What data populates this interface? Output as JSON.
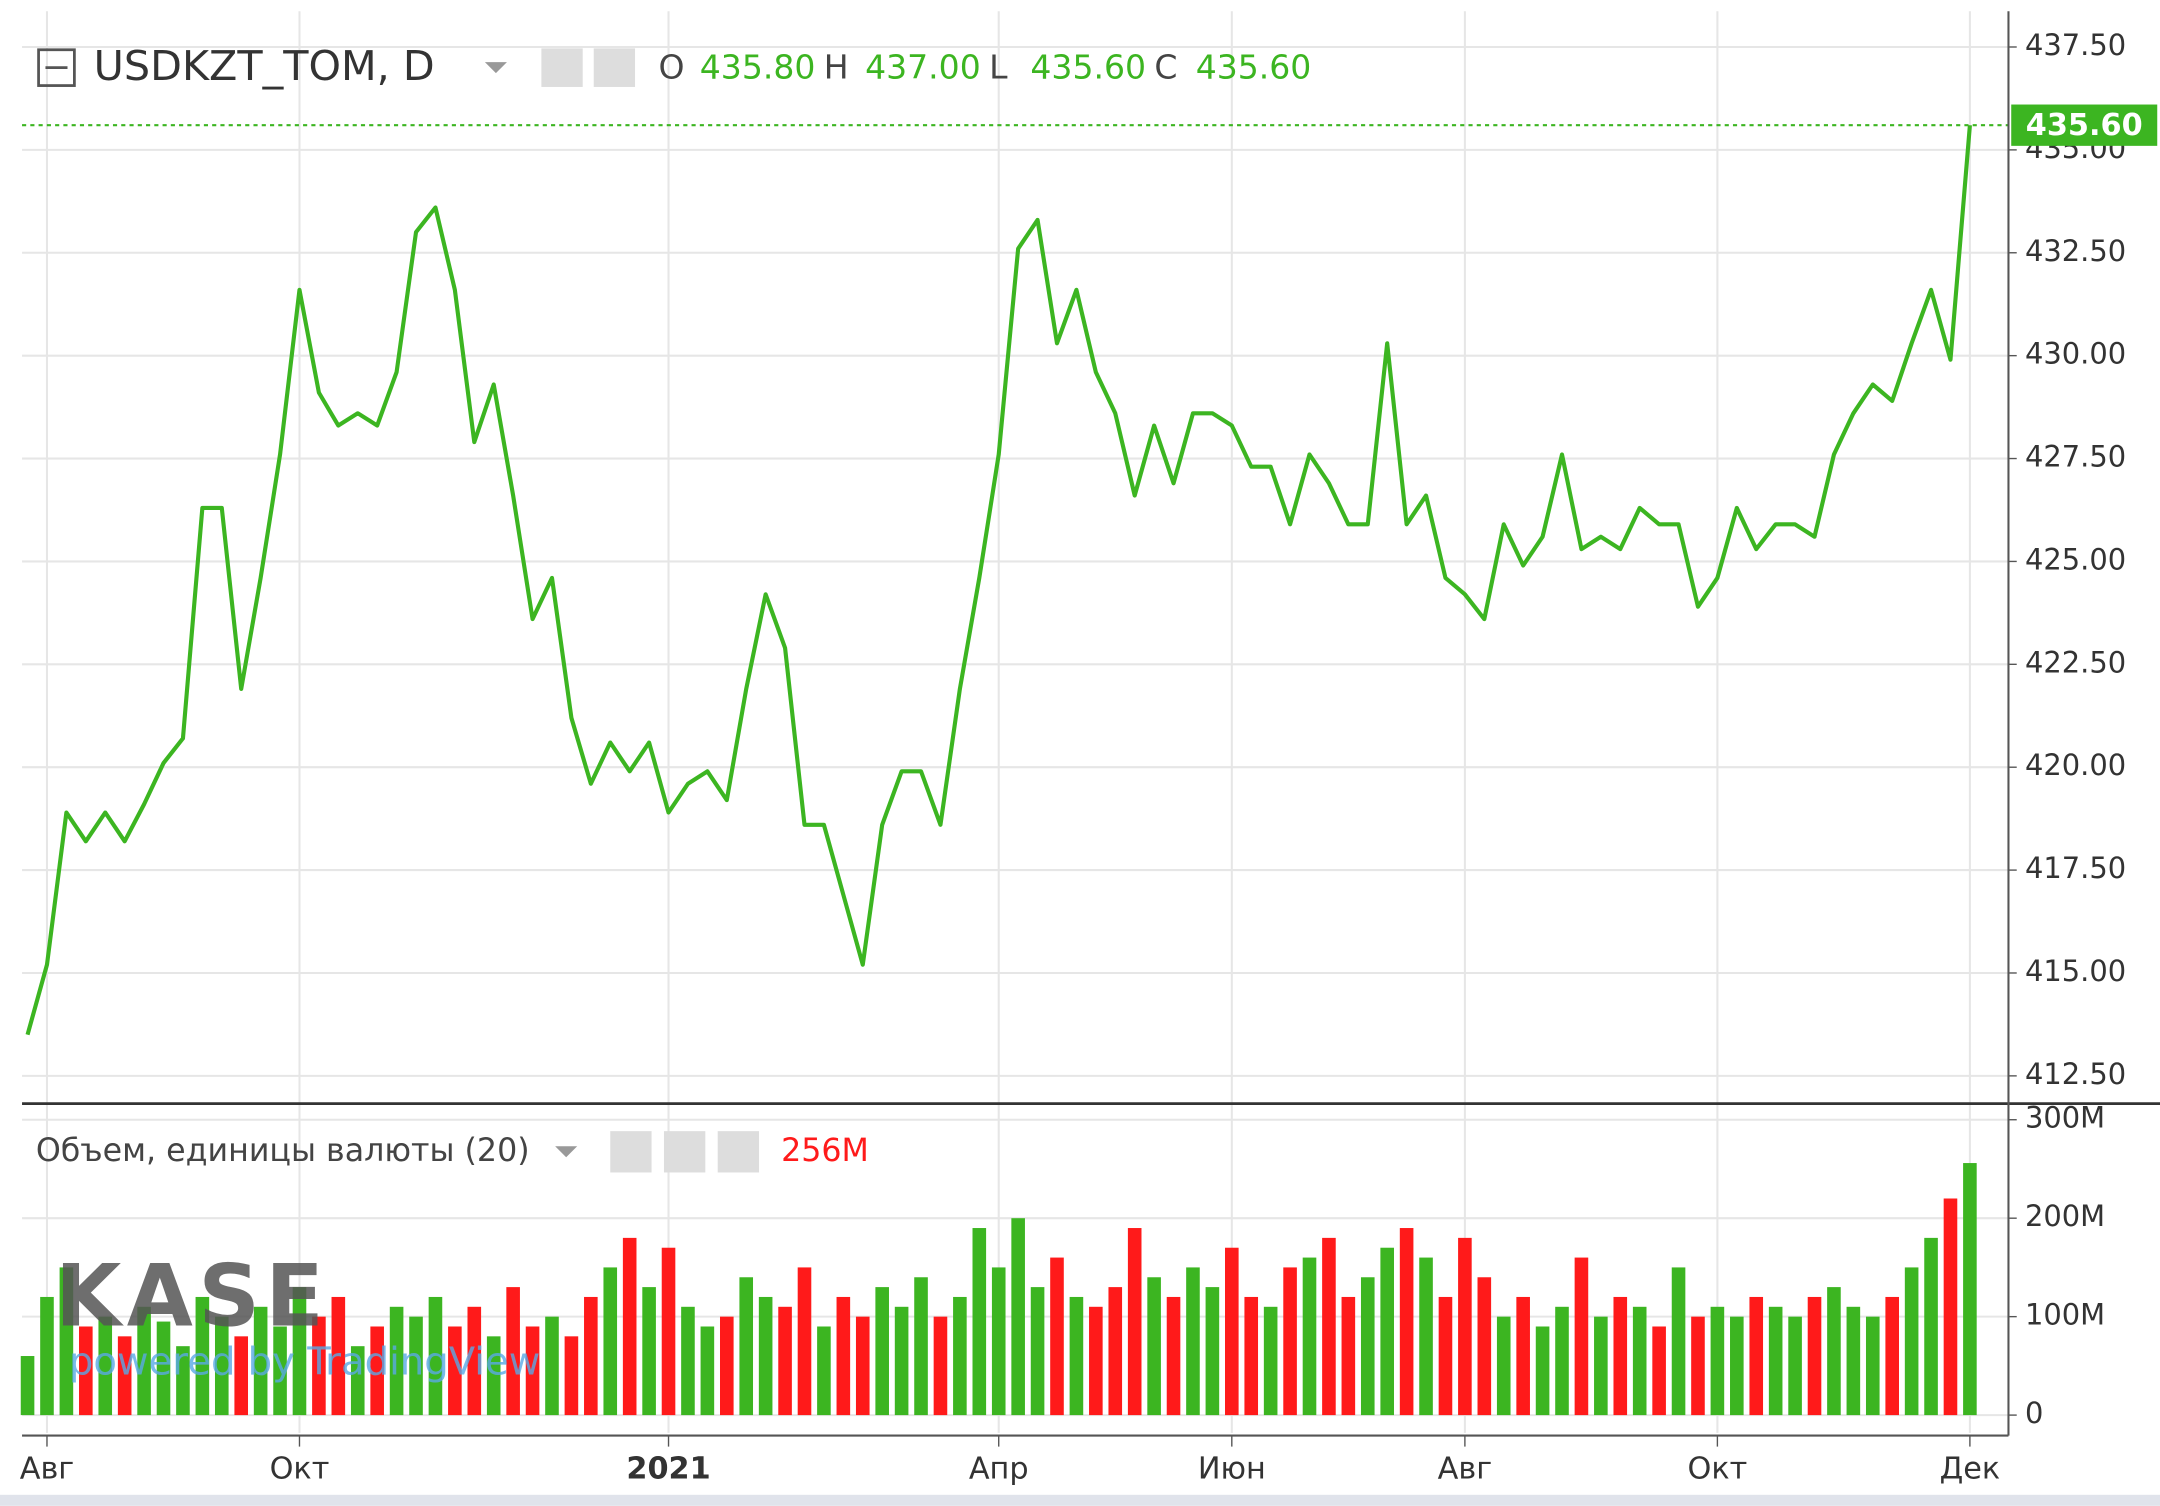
{
  "chart_data": [
    {
      "type": "line",
      "title": "USDKZT_TOM, D",
      "color": "#3cb521",
      "grid": true,
      "ohlc": [
        {
          "key": "O",
          "text": "435.80"
        },
        {
          "key": "H",
          "text": "437.00"
        },
        {
          "key": "L",
          "text": "435.60"
        },
        {
          "key": "C",
          "text": "435.60"
        }
      ],
      "categories": [
        null,
        "Авг",
        null,
        null,
        null,
        null,
        null,
        null,
        null,
        null,
        null,
        null,
        null,
        null,
        "Окт",
        null,
        null,
        null,
        null,
        null,
        null,
        null,
        null,
        null,
        null,
        null,
        null,
        null,
        null,
        null,
        null,
        null,
        null,
        "2021",
        null,
        null,
        null,
        null,
        null,
        null,
        null,
        null,
        null,
        null,
        null,
        null,
        null,
        null,
        null,
        null,
        "Апр",
        null,
        null,
        null,
        null,
        null,
        null,
        null,
        null,
        null,
        null,
        null,
        "Июн",
        null,
        null,
        null,
        null,
        null,
        null,
        null,
        null,
        null,
        null,
        null,
        "Авг",
        null,
        null,
        null,
        null,
        null,
        null,
        null,
        null,
        null,
        null,
        null,
        null,
        "Окт",
        null,
        null,
        null,
        null,
        null,
        null,
        null,
        null,
        null,
        null,
        null,
        null,
        "Дек"
      ],
      "values": [
        413.5,
        415.2,
        418.9,
        418.2,
        418.9,
        418.2,
        419.1,
        420.1,
        420.7,
        426.3,
        426.3,
        421.9,
        424.6,
        427.6,
        431.6,
        429.1,
        428.3,
        428.6,
        428.3,
        429.6,
        433.0,
        433.6,
        431.6,
        427.9,
        429.3,
        426.6,
        423.6,
        424.6,
        421.2,
        419.6,
        420.6,
        419.9,
        420.6,
        418.9,
        419.6,
        419.9,
        419.2,
        421.9,
        424.2,
        422.9,
        418.6,
        418.6,
        416.9,
        415.2,
        418.6,
        419.9,
        419.9,
        418.6,
        421.9,
        424.6,
        427.6,
        432.6,
        433.3,
        430.3,
        431.6,
        429.6,
        428.6,
        426.6,
        428.3,
        426.9,
        428.6,
        428.6,
        428.3,
        427.3,
        427.3,
        425.9,
        427.6,
        426.9,
        425.9,
        425.9,
        430.3,
        425.9,
        426.6,
        424.6,
        424.2,
        423.6,
        425.9,
        424.9,
        425.6,
        427.6,
        425.3,
        425.6,
        425.3,
        426.3,
        425.9,
        425.9,
        423.9,
        424.6,
        426.3,
        425.3,
        425.9,
        425.9,
        425.6,
        427.6,
        428.6,
        429.3,
        428.9,
        430.3,
        431.6,
        429.9,
        435.6
      ],
      "ylim": [
        411.86,
        438.37
      ],
      "yticks": [
        {
          "value": 412.5,
          "label": "412.50"
        },
        {
          "value": 415,
          "label": "415.00"
        },
        {
          "value": 417.5,
          "label": "417.50"
        },
        {
          "value": 420,
          "label": "420.00"
        },
        {
          "value": 422.5,
          "label": "422.50"
        },
        {
          "value": 425,
          "label": "425.00"
        },
        {
          "value": 427.5,
          "label": "427.50"
        },
        {
          "value": 430,
          "label": "430.00"
        },
        {
          "value": 432.5,
          "label": "432.50"
        },
        {
          "value": 435,
          "label": "435.00"
        },
        {
          "value": 437.5,
          "label": "437.50"
        }
      ]
    },
    {
      "type": "bar",
      "title": "Объем, единицы валюты (20)",
      "legend_value": "256M",
      "up_color": "#3cb521",
      "down_color": "#ff1a1a",
      "grid": true,
      "values": [
        60,
        120,
        150,
        90,
        100,
        80,
        110,
        95,
        70,
        120,
        100,
        80,
        110,
        90,
        130,
        100,
        120,
        70,
        90,
        110,
        100,
        120,
        90,
        110,
        80,
        130,
        90,
        100,
        80,
        120,
        150,
        180,
        130,
        170,
        110,
        90,
        100,
        140,
        120,
        110,
        150,
        90,
        120,
        100,
        130,
        110,
        140,
        100,
        120,
        190,
        150,
        200,
        130,
        160,
        120,
        110,
        130,
        190,
        140,
        120,
        150,
        130,
        170,
        120,
        110,
        150,
        160,
        180,
        120,
        140,
        170,
        190,
        160,
        120,
        180,
        140,
        100,
        120,
        90,
        110,
        160,
        100,
        120,
        110,
        90,
        150,
        100,
        110,
        100,
        120,
        110,
        100,
        120,
        130,
        110,
        100,
        120,
        150,
        180,
        220,
        256
      ],
      "ylim": [
        -18,
        315
      ],
      "yticks": [
        0,
        {
          "value": 100,
          "label": "100M"
        },
        {
          "value": 200,
          "label": "200M"
        },
        {
          "value": 300,
          "label": "300M"
        }
      ]
    }
  ],
  "watermark": {
    "logo": "KASE",
    "tagline": "powered by TradingView"
  }
}
